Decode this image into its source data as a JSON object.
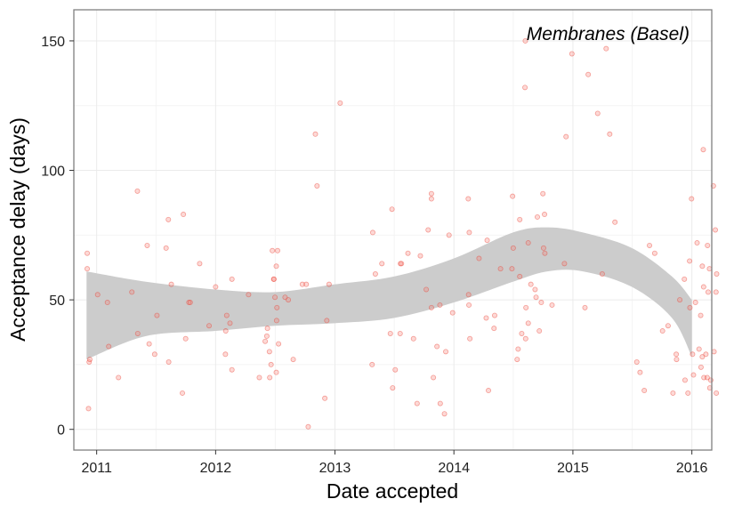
{
  "chart_data": {
    "type": "scatter",
    "title": "",
    "annotation": "Membranes (Basel)",
    "xlabel": "Date accepted",
    "ylabel": "Acceptance delay (days)",
    "x_ticks": [
      "2011",
      "2012",
      "2013",
      "2014",
      "2015",
      "2016"
    ],
    "y_ticks": [
      0,
      50,
      100,
      150
    ],
    "xlim": [
      "2010-10-23",
      "2016-03-02"
    ],
    "ylim": [
      -8,
      162
    ],
    "grid": true,
    "legend": "none",
    "colors": {
      "points": "#f8766d",
      "points_stroke": "#e8392d",
      "ribbon": "#cccccc",
      "panel_border": "#7f7f7f",
      "grid": "#ebebeb"
    },
    "series": [
      {
        "points": [
          [
            "2010-12-03",
            68
          ],
          [
            "2010-12-03",
            62
          ],
          [
            "2010-12-07",
            8
          ],
          [
            "2010-12-09",
            26
          ],
          [
            "2010-12-11",
            27
          ],
          [
            "2011-01-04",
            52
          ],
          [
            "2011-02-03",
            49
          ],
          [
            "2011-02-07",
            32
          ],
          [
            "2011-03-09",
            20
          ],
          [
            "2011-04-19",
            53
          ],
          [
            "2011-05-06",
            92
          ],
          [
            "2011-05-07",
            37
          ],
          [
            "2011-06-05",
            71
          ],
          [
            "2011-06-11",
            33
          ],
          [
            "2011-06-28",
            29
          ],
          [
            "2011-07-05",
            44
          ],
          [
            "2011-08-02",
            70
          ],
          [
            "2011-08-09",
            81
          ],
          [
            "2011-08-10",
            26
          ],
          [
            "2011-08-18",
            56
          ],
          [
            "2011-09-21",
            14
          ],
          [
            "2011-09-24",
            83
          ],
          [
            "2011-10-01",
            35
          ],
          [
            "2011-10-11",
            49
          ],
          [
            "2011-10-15",
            49
          ],
          [
            "2011-11-13",
            64
          ],
          [
            "2011-12-12",
            40
          ],
          [
            "2012-01-01",
            55
          ],
          [
            "2012-01-31",
            29
          ],
          [
            "2012-02-01",
            38
          ],
          [
            "2012-02-04",
            44
          ],
          [
            "2012-02-14",
            41
          ],
          [
            "2012-02-20",
            58
          ],
          [
            "2012-02-20",
            23
          ],
          [
            "2012-04-11",
            52
          ],
          [
            "2012-05-14",
            20
          ],
          [
            "2012-06-01",
            34
          ],
          [
            "2012-06-06",
            36
          ],
          [
            "2012-06-08",
            39
          ],
          [
            "2012-06-14",
            30
          ],
          [
            "2012-06-15",
            20
          ],
          [
            "2012-06-19",
            25
          ],
          [
            "2012-06-23",
            69
          ],
          [
            "2012-06-27",
            58
          ],
          [
            "2012-06-28",
            58
          ],
          [
            "2012-07-01",
            51
          ],
          [
            "2012-07-05",
            63
          ],
          [
            "2012-07-05",
            22
          ],
          [
            "2012-07-06",
            42
          ],
          [
            "2012-07-07",
            47
          ],
          [
            "2012-07-09",
            69
          ],
          [
            "2012-07-12",
            33
          ],
          [
            "2012-08-01",
            51
          ],
          [
            "2012-08-11",
            50
          ],
          [
            "2012-08-26",
            27
          ],
          [
            "2012-09-23",
            56
          ],
          [
            "2012-10-05",
            56
          ],
          [
            "2012-10-11",
            1
          ],
          [
            "2012-11-02",
            114
          ],
          [
            "2012-11-07",
            94
          ],
          [
            "2012-12-01",
            12
          ],
          [
            "2012-12-07",
            42
          ],
          [
            "2012-12-14",
            56
          ],
          [
            "2013-01-17",
            126
          ],
          [
            "2013-04-25",
            25
          ],
          [
            "2013-04-27",
            76
          ],
          [
            "2013-05-05",
            60
          ],
          [
            "2013-05-25",
            64
          ],
          [
            "2013-06-20",
            37
          ],
          [
            "2013-06-25",
            85
          ],
          [
            "2013-06-27",
            16
          ],
          [
            "2013-07-05",
            23
          ],
          [
            "2013-07-20",
            37
          ],
          [
            "2013-07-21",
            64
          ],
          [
            "2013-07-24",
            64
          ],
          [
            "2013-08-13",
            68
          ],
          [
            "2013-08-30",
            35
          ],
          [
            "2013-09-10",
            10
          ],
          [
            "2013-09-20",
            67
          ],
          [
            "2013-10-08",
            54
          ],
          [
            "2013-10-14",
            77
          ],
          [
            "2013-10-24",
            47
          ],
          [
            "2013-10-24",
            91
          ],
          [
            "2013-10-24",
            89
          ],
          [
            "2013-10-30",
            20
          ],
          [
            "2013-11-10",
            32
          ],
          [
            "2013-11-19",
            48
          ],
          [
            "2013-11-20",
            10
          ],
          [
            "2013-12-03",
            6
          ],
          [
            "2013-12-07",
            30
          ],
          [
            "2013-12-17",
            75
          ],
          [
            "2013-12-28",
            45
          ],
          [
            "2014-02-14",
            89
          ],
          [
            "2014-02-15",
            52
          ],
          [
            "2014-02-16",
            48
          ],
          [
            "2014-02-17",
            76
          ],
          [
            "2014-02-19",
            35
          ],
          [
            "2014-03-19",
            66
          ],
          [
            "2014-04-10",
            43
          ],
          [
            "2014-04-13",
            73
          ],
          [
            "2014-04-17",
            15
          ],
          [
            "2014-05-04",
            39
          ],
          [
            "2014-05-06",
            44
          ],
          [
            "2014-05-24",
            62
          ],
          [
            "2014-06-28",
            62
          ],
          [
            "2014-06-30",
            90
          ],
          [
            "2014-07-02",
            70
          ],
          [
            "2014-07-14",
            27
          ],
          [
            "2014-07-17",
            31
          ],
          [
            "2014-07-22",
            81
          ],
          [
            "2014-07-22",
            59
          ],
          [
            "2014-07-28",
            37
          ],
          [
            "2014-08-07",
            132
          ],
          [
            "2014-08-08",
            150
          ],
          [
            "2014-08-09",
            35
          ],
          [
            "2014-08-10",
            47
          ],
          [
            "2014-08-17",
            72
          ],
          [
            "2014-08-17",
            41
          ],
          [
            "2014-08-25",
            56
          ],
          [
            "2014-09-07",
            54
          ],
          [
            "2014-09-10",
            51
          ],
          [
            "2014-09-14",
            82
          ],
          [
            "2014-09-20",
            38
          ],
          [
            "2014-09-26",
            49
          ],
          [
            "2014-10-01",
            91
          ],
          [
            "2014-10-03",
            70
          ],
          [
            "2014-10-06",
            83
          ],
          [
            "2014-10-07",
            68
          ],
          [
            "2014-10-29",
            48
          ],
          [
            "2014-12-06",
            64
          ],
          [
            "2014-12-11",
            113
          ],
          [
            "2014-12-29",
            145
          ],
          [
            "2015-02-07",
            47
          ],
          [
            "2015-02-17",
            137
          ],
          [
            "2015-03-18",
            122
          ],
          [
            "2015-04-01",
            60
          ],
          [
            "2015-04-13",
            147
          ],
          [
            "2015-04-24",
            114
          ],
          [
            "2015-05-10",
            80
          ],
          [
            "2015-07-16",
            26
          ],
          [
            "2015-07-26",
            22
          ],
          [
            "2015-08-08",
            15
          ],
          [
            "2015-08-24",
            71
          ],
          [
            "2015-09-09",
            68
          ],
          [
            "2015-10-03",
            38
          ],
          [
            "2015-10-20",
            40
          ],
          [
            "2015-11-04",
            14
          ],
          [
            "2015-11-14",
            29
          ],
          [
            "2015-11-15",
            27
          ],
          [
            "2015-11-25",
            50
          ],
          [
            "2015-12-09",
            58
          ],
          [
            "2015-12-11",
            19
          ],
          [
            "2015-12-20",
            14
          ],
          [
            "2015-12-25",
            65
          ],
          [
            "2015-12-26",
            47
          ],
          [
            "2015-12-31",
            89
          ],
          [
            "2016-01-03",
            29
          ],
          [
            "2016-01-06",
            21
          ],
          [
            "2016-01-12",
            49
          ],
          [
            "2016-01-17",
            72
          ],
          [
            "2016-01-23",
            31
          ],
          [
            "2016-01-28",
            44
          ],
          [
            "2016-01-29",
            24
          ],
          [
            "2016-02-02",
            28
          ],
          [
            "2016-02-02",
            63
          ],
          [
            "2016-02-05",
            108
          ],
          [
            "2016-02-06",
            55
          ],
          [
            "2016-02-07",
            20
          ],
          [
            "2016-02-13",
            29
          ],
          [
            "2016-02-17",
            20
          ],
          [
            "2016-02-18",
            71
          ],
          [
            "2016-02-20",
            53
          ],
          [
            "2016-02-24",
            62
          ],
          [
            "2016-02-25",
            16
          ],
          [
            "2016-02-28",
            19
          ],
          [
            "2016-03-07",
            94
          ],
          [
            "2016-03-09",
            30
          ],
          [
            "2016-03-13",
            77
          ],
          [
            "2016-03-15",
            53
          ],
          [
            "2016-03-16",
            14
          ],
          [
            "2016-03-17",
            60
          ]
        ]
      }
    ],
    "ribbon": {
      "x": [
        "2010-12-01",
        "2011-06-01",
        "2012-01-01",
        "2012-07-01",
        "2013-01-01",
        "2013-07-01",
        "2014-01-01",
        "2014-07-01",
        "2014-10-15",
        "2015-02-01",
        "2015-07-01",
        "2015-11-01",
        "2016-01-01"
      ],
      "lower": [
        27,
        36,
        38,
        40,
        41,
        43,
        49,
        57,
        61,
        61,
        55,
        43,
        28
      ],
      "upper": [
        61,
        57,
        54,
        53,
        56,
        59,
        66,
        76,
        78,
        76,
        70,
        59,
        50
      ]
    }
  }
}
